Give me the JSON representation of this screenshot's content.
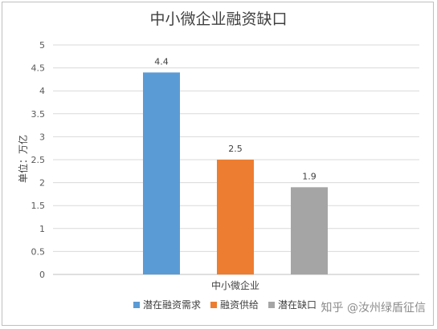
{
  "chart_data": {
    "type": "bar",
    "title": "中小微企业融资缺口",
    "ylabel": "单位：万亿",
    "xlabel": "",
    "categories": [
      "中小微企业"
    ],
    "series": [
      {
        "name": "潜在融资需求",
        "values": [
          4.4
        ],
        "color": "#5B9BD5"
      },
      {
        "name": "融资供给",
        "values": [
          2.5
        ],
        "color": "#ED7D31"
      },
      {
        "name": "潜在缺口",
        "values": [
          1.9
        ],
        "color": "#A5A5A5"
      }
    ],
    "ylim": [
      0,
      5
    ],
    "yticks": [
      "0",
      "0.5",
      "1",
      "1.5",
      "2",
      "2.5",
      "3",
      "3.5",
      "4",
      "4.5",
      "5"
    ],
    "data_labels": [
      "4.4",
      "2.5",
      "1.9"
    ],
    "grid": true,
    "legend_position": "bottom"
  },
  "watermark": "知乎 @汝州绿盾征信"
}
